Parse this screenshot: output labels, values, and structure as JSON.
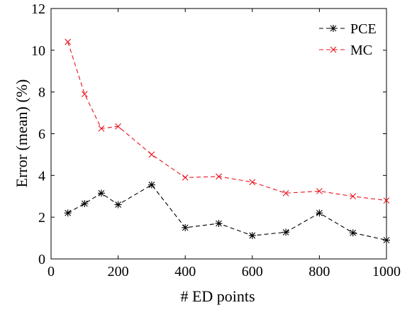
{
  "chart_data": {
    "type": "line",
    "title": "",
    "xlabel": "# ED points",
    "ylabel": "Error (mean) (%)",
    "xlim": [
      0,
      1000
    ],
    "ylim": [
      0,
      12
    ],
    "xticks": [
      0,
      200,
      400,
      600,
      800,
      1000
    ],
    "yticks": [
      0,
      2,
      4,
      6,
      8,
      10,
      12
    ],
    "grid": false,
    "legend_position": "top-right",
    "x": [
      50,
      100,
      150,
      200,
      300,
      400,
      500,
      600,
      700,
      800,
      900,
      1000
    ],
    "series": [
      {
        "name": "PCE",
        "color": "#000000",
        "marker": "asterisk",
        "line_style": "dashed",
        "values": [
          2.2,
          2.65,
          3.15,
          2.6,
          3.55,
          1.5,
          1.7,
          1.12,
          1.28,
          2.2,
          1.25,
          0.9
        ]
      },
      {
        "name": "MC",
        "color": "#e8141e",
        "marker": "x",
        "line_style": "dashed",
        "values": [
          10.4,
          7.9,
          6.25,
          6.35,
          5.0,
          3.9,
          3.95,
          3.68,
          3.15,
          3.25,
          3.0,
          2.8
        ]
      }
    ]
  }
}
